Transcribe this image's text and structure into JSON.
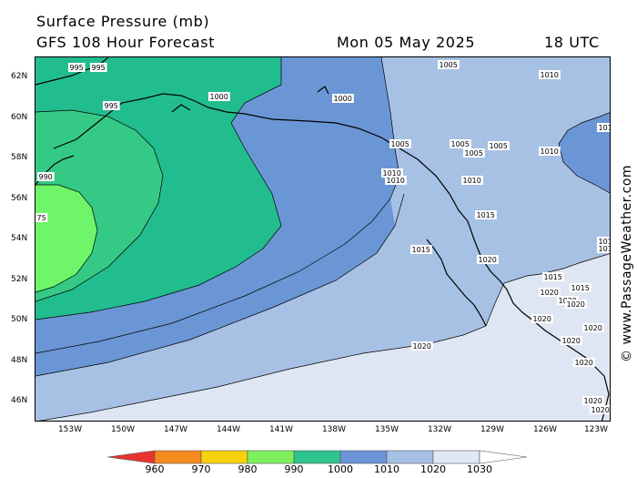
{
  "header": {
    "title": "Surface Pressure (mb)",
    "model": "GFS 108 Hour Forecast",
    "date": "Mon 05 May 2025",
    "time": "18 UTC"
  },
  "credit": "© www.PassageWeather.com",
  "axes": {
    "lat_labels": [
      "62N",
      "60N",
      "58N",
      "56N",
      "54N",
      "52N",
      "50N",
      "48N",
      "46N"
    ],
    "lon_labels": [
      "153W",
      "150W",
      "147W",
      "144W",
      "141W",
      "138W",
      "135W",
      "132W",
      "129W",
      "126W",
      "123W"
    ]
  },
  "isobar_labels": [
    {
      "text": "995"
    },
    {
      "text": "995"
    },
    {
      "text": "995"
    },
    {
      "text": "990"
    },
    {
      "text": "75"
    },
    {
      "text": "1000"
    },
    {
      "text": "1000"
    },
    {
      "text": "1005"
    },
    {
      "text": "1005"
    },
    {
      "text": "1005"
    },
    {
      "text": "1005"
    },
    {
      "text": "1005"
    },
    {
      "text": "1010"
    },
    {
      "text": "1010"
    },
    {
      "text": "1010"
    },
    {
      "text": "1010"
    },
    {
      "text": "1010"
    },
    {
      "text": "1010"
    },
    {
      "text": "1015"
    },
    {
      "text": "1015"
    },
    {
      "text": "1015"
    },
    {
      "text": "1015"
    },
    {
      "text": "1015"
    },
    {
      "text": "101"
    },
    {
      "text": "1020"
    },
    {
      "text": "1020"
    },
    {
      "text": "1020"
    },
    {
      "text": "1020"
    },
    {
      "text": "1020"
    },
    {
      "text": "1020"
    },
    {
      "text": "1020"
    },
    {
      "text": "1020"
    },
    {
      "text": "1020"
    },
    {
      "text": "1020"
    },
    {
      "text": "1020"
    }
  ],
  "colorbar": {
    "labels": [
      "960",
      "970",
      "980",
      "990",
      "1000",
      "1010",
      "1020",
      "1030"
    ],
    "colors": [
      "#e8332f",
      "#f58a1e",
      "#f7d10a",
      "#7ef060",
      "#2fc48e",
      "#6a94d8",
      "#a7c0e6",
      "#e1e8f5",
      "#ffffff"
    ]
  },
  "fill_colors": {
    "band_975": "#6ff56a",
    "band_985": "#35c986",
    "band_995": "#22bd8e",
    "band_1005": "#6b96d5",
    "band_1015": "#a7c1e4",
    "band_1025": "#dfe6f3"
  }
}
